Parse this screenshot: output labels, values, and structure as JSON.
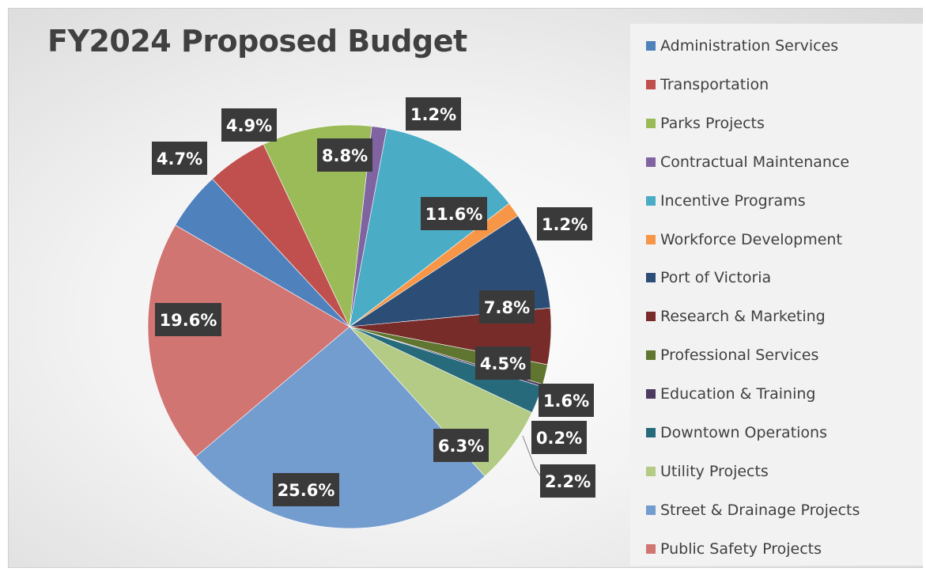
{
  "chart_data": {
    "type": "pie",
    "title": "FY2024 Proposed Budget",
    "slices": [
      {
        "name": "Administration Services",
        "value": 4.7,
        "label": "4.7%",
        "color": "#4F81BD"
      },
      {
        "name": "Transportation",
        "value": 4.9,
        "label": "4.9%",
        "color": "#C0504D"
      },
      {
        "name": "Parks Projects",
        "value": 8.8,
        "label": "8.8%",
        "color": "#9BBB59"
      },
      {
        "name": "Contractual Maintenance",
        "value": 1.2,
        "label": "1.2%",
        "color": "#8064A2"
      },
      {
        "name": "Incentive Programs",
        "value": 11.6,
        "label": "11.6%",
        "color": "#4BACC6"
      },
      {
        "name": "Workforce Development",
        "value": 1.2,
        "label": "1.2%",
        "color": "#F79646"
      },
      {
        "name": "Port of Victoria",
        "value": 7.8,
        "label": "7.8%",
        "color": "#2C4D75"
      },
      {
        "name": "Research & Marketing",
        "value": 4.5,
        "label": "4.5%",
        "color": "#772C2A"
      },
      {
        "name": "Professional Services",
        "value": 1.6,
        "label": "1.6%",
        "color": "#5F7530"
      },
      {
        "name": "Education & Training",
        "value": 0.2,
        "label": "0.2%",
        "color": "#4D3B62"
      },
      {
        "name": "Downtown Operations",
        "value": 2.2,
        "label": "2.2%",
        "color": "#276A7C"
      },
      {
        "name": "Utility Projects",
        "value": 6.3,
        "label": "6.3%",
        "color": "#B4CB86"
      },
      {
        "name": "Street & Drainage Projects",
        "value": 25.6,
        "label": "25.6%",
        "color": "#739CCF"
      },
      {
        "name": "Public Safety Projects",
        "value": 19.6,
        "label": "19.6%",
        "color": "#D17573"
      }
    ],
    "legend_position": "right"
  }
}
